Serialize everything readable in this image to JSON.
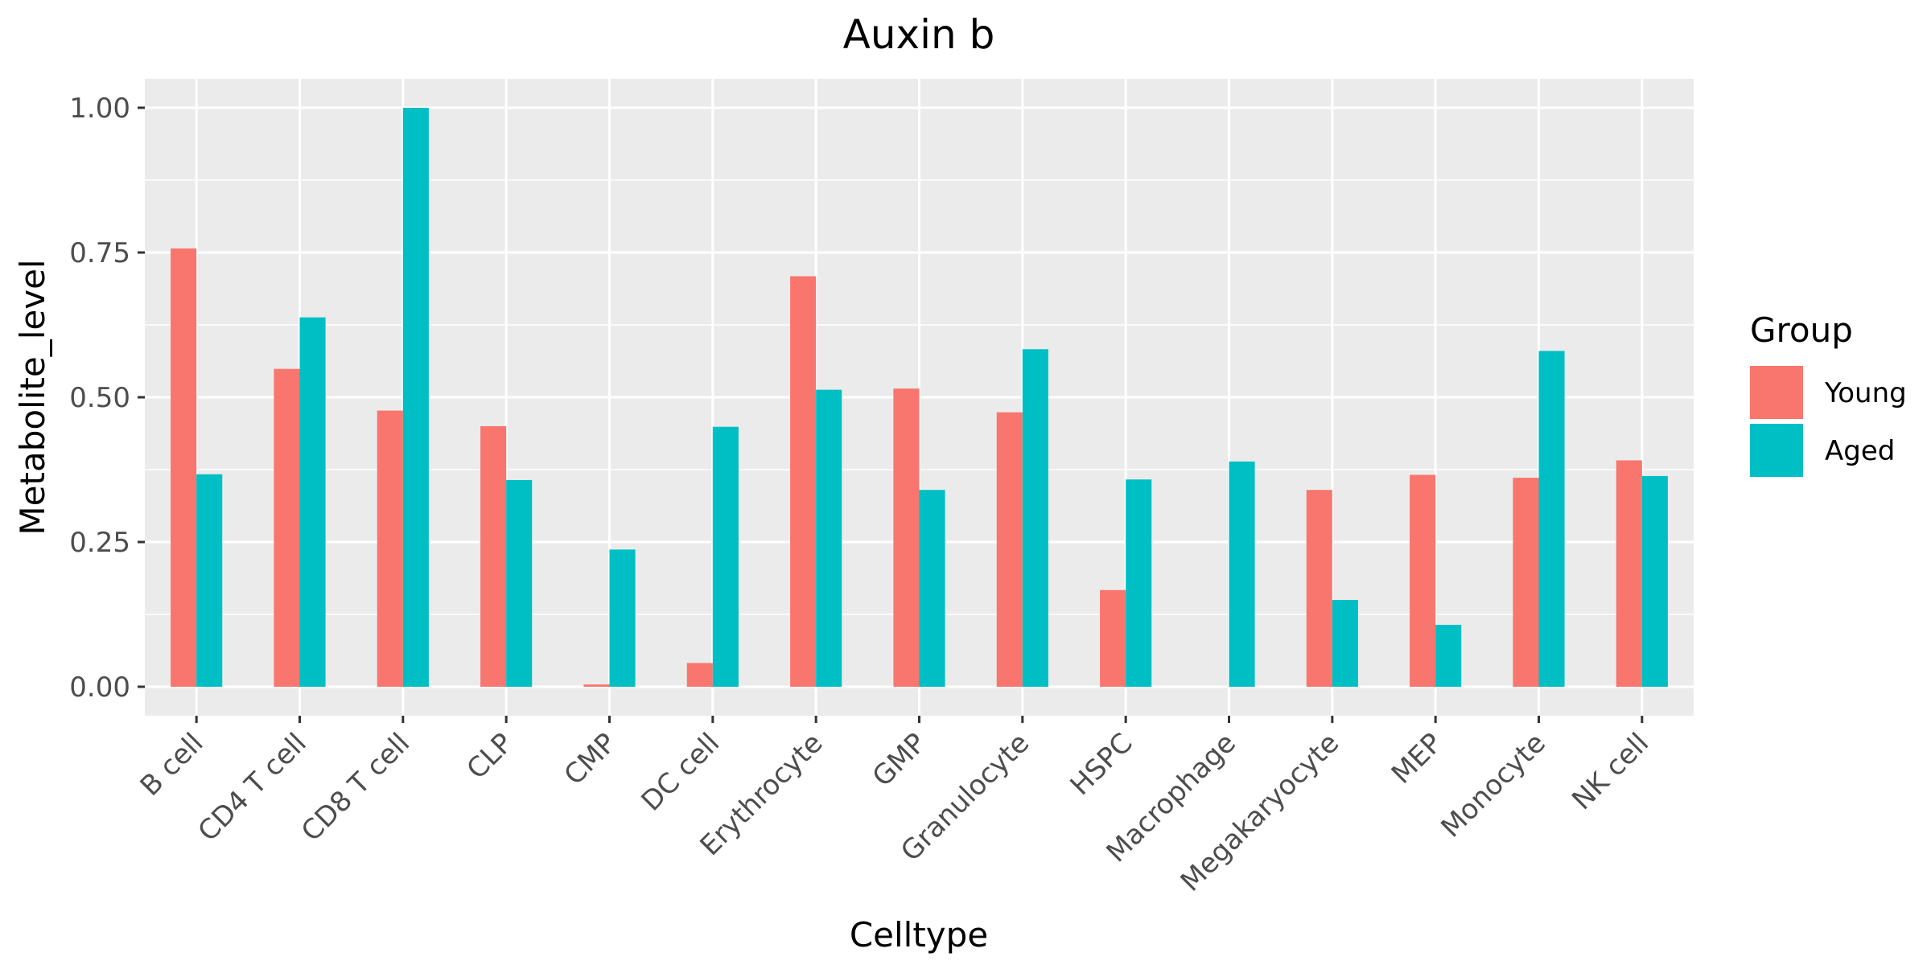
{
  "chart_data": {
    "type": "bar",
    "title": "Auxin b",
    "xlabel": "Celltype",
    "ylabel": "Metabolite_level",
    "ylim": [
      -0.05,
      1.05
    ],
    "yticks": [
      0.0,
      0.25,
      0.5,
      0.75,
      1.0
    ],
    "ytick_labels": [
      "0.00",
      "0.25",
      "0.50",
      "0.75",
      "1.00"
    ],
    "grid": true,
    "legend": {
      "title": "Group",
      "position": "right"
    },
    "categories": [
      "B cell",
      "CD4 T cell",
      "CD8 T cell",
      "CLP",
      "CMP",
      "DC cell",
      "Erythrocyte",
      "GMP",
      "Granulocyte",
      "HSPC",
      "Macrophage",
      "Megakaryocyte",
      "MEP",
      "Monocyte",
      "NK cell"
    ],
    "series": [
      {
        "name": "Young",
        "color": "#F8766D",
        "values": [
          0.757,
          0.549,
          0.477,
          0.45,
          0.004,
          0.041,
          0.709,
          0.515,
          0.474,
          0.167,
          0.0,
          0.34,
          0.366,
          0.361,
          0.391
        ]
      },
      {
        "name": "Aged",
        "color": "#00BFC4",
        "values": [
          0.367,
          0.638,
          1.0,
          0.357,
          0.237,
          0.449,
          0.513,
          0.34,
          0.583,
          0.358,
          0.389,
          0.15,
          0.107,
          0.58,
          0.364
        ]
      }
    ]
  }
}
